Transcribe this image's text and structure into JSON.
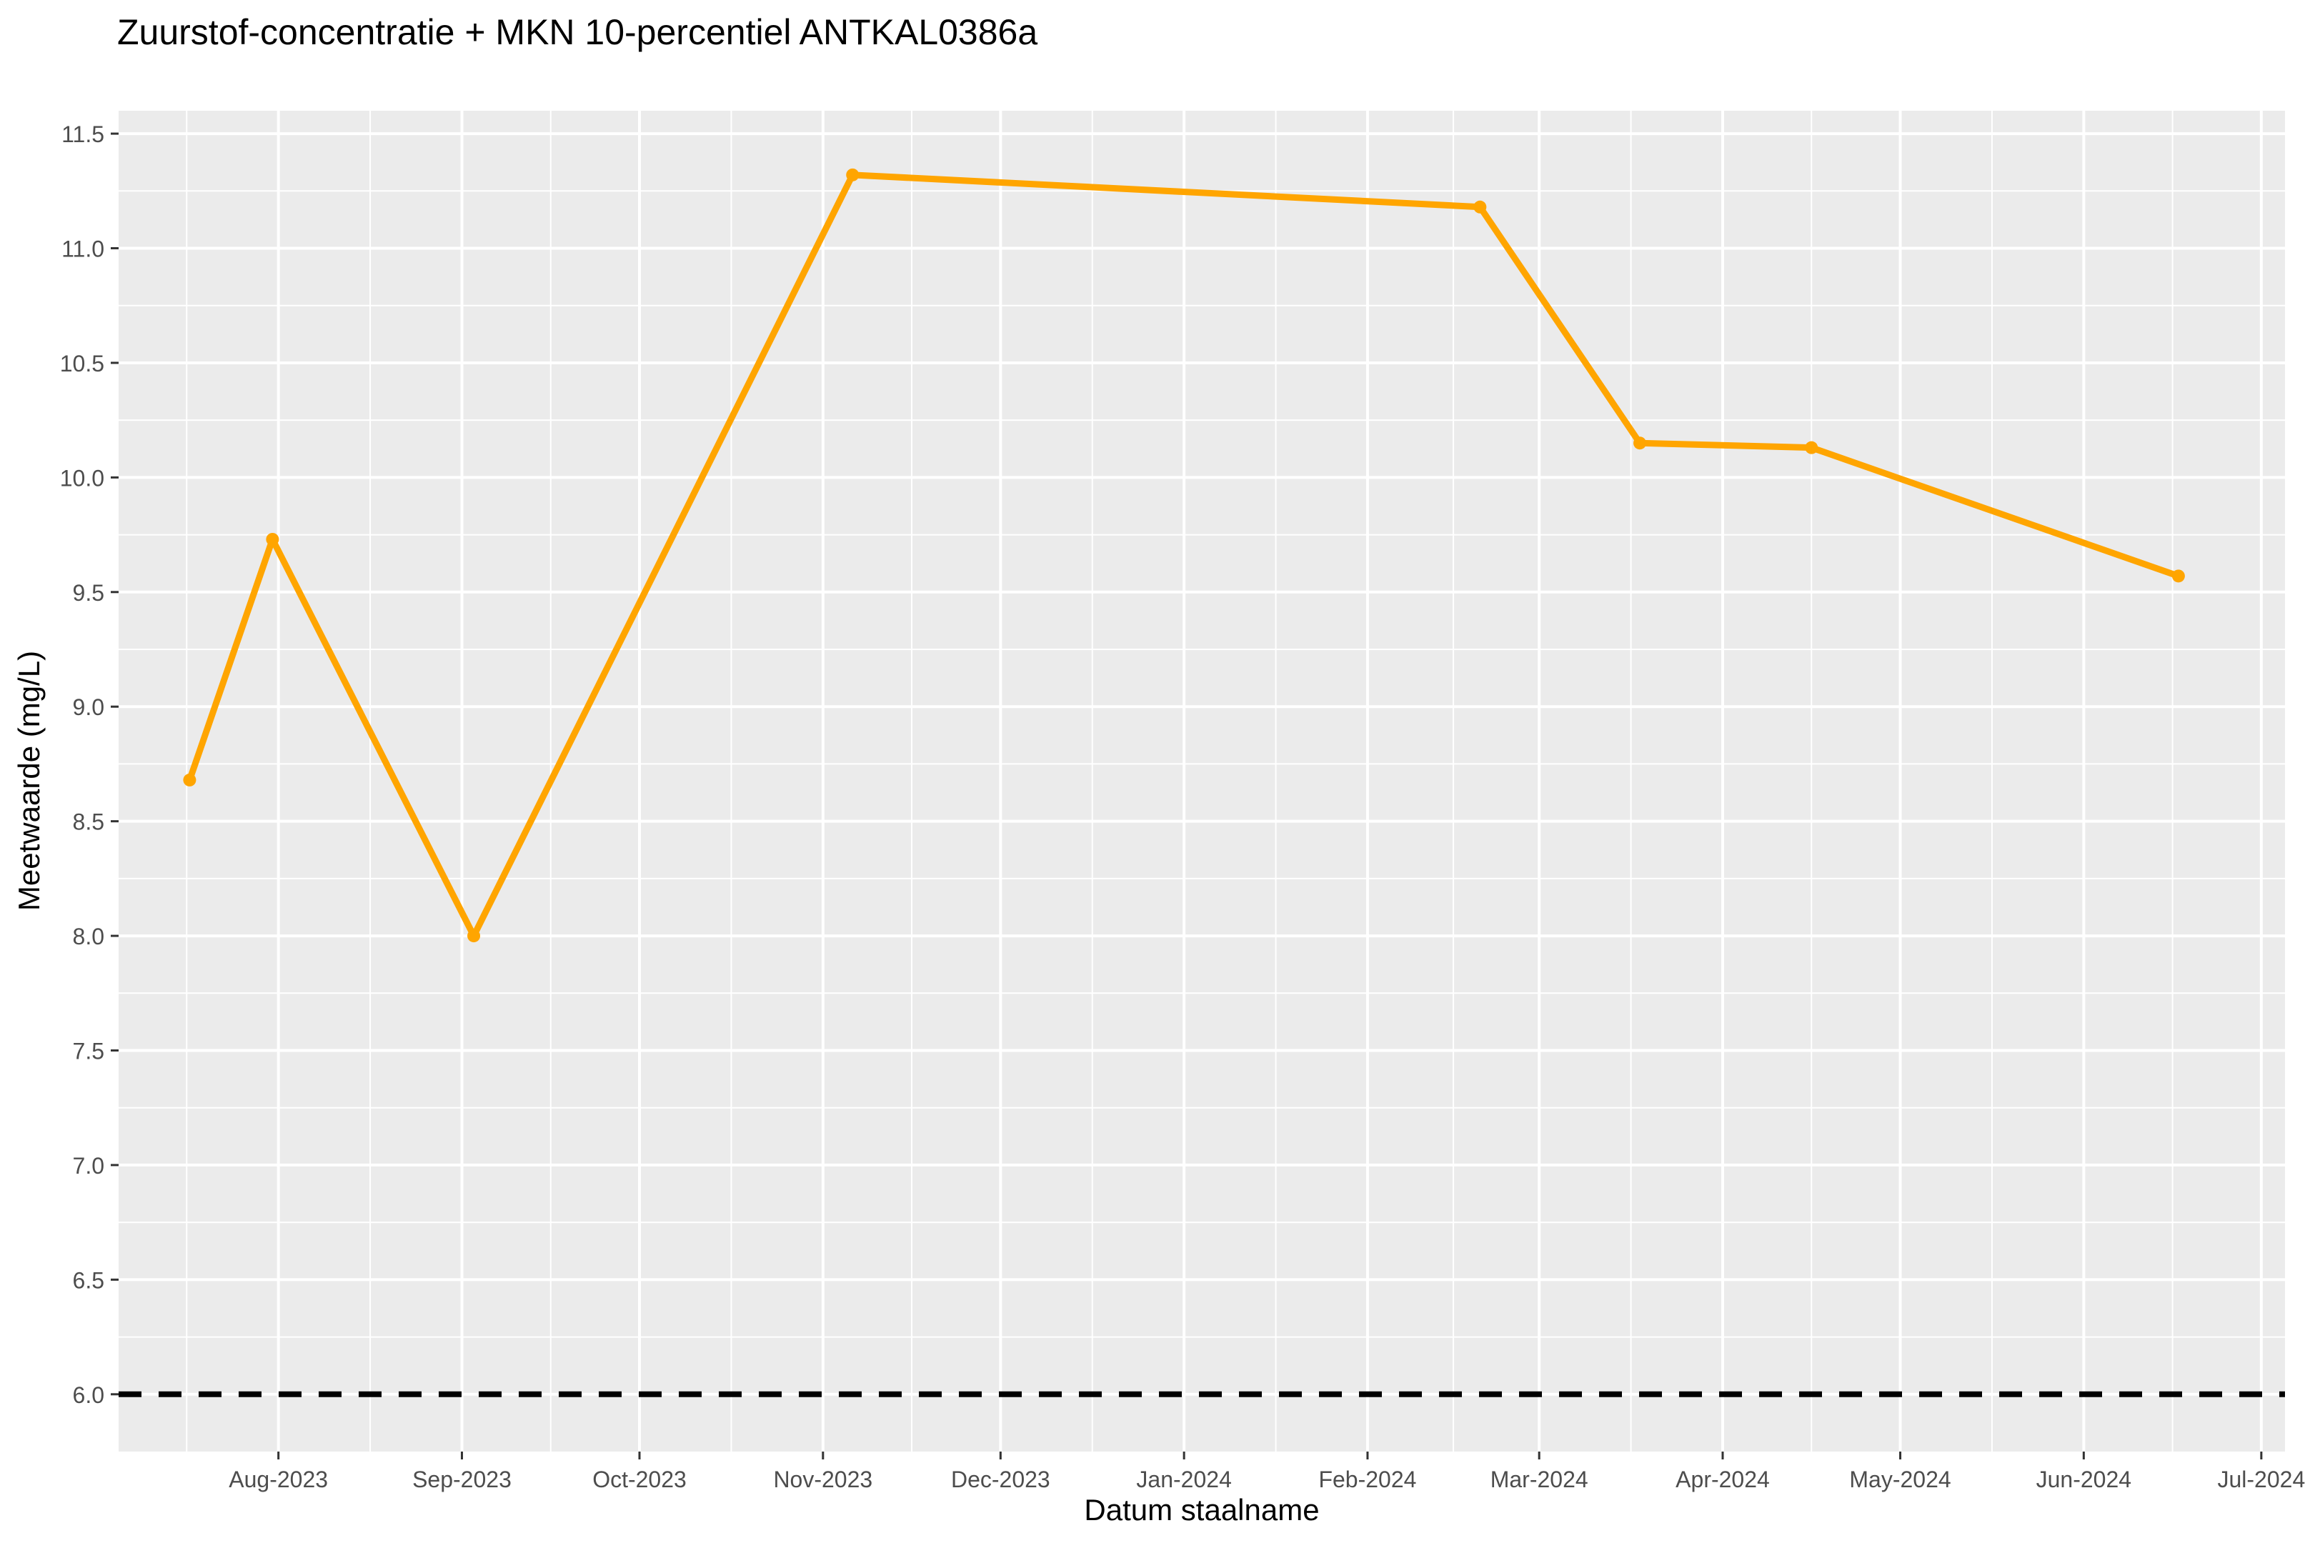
{
  "chart_data": {
    "type": "line",
    "title": "Zuurstof-concentratie + MKN 10-percentiel ANTKAL0386a",
    "xlabel": "Datum staalname",
    "ylabel": "Meetwaarde (mg/L)",
    "xlim": [
      "2023-07-05",
      "2024-07-05"
    ],
    "ylim": [
      5.75,
      11.6
    ],
    "x_ticks": [
      {
        "date": "2023-08-01",
        "label": "Aug-2023"
      },
      {
        "date": "2023-09-01",
        "label": "Sep-2023"
      },
      {
        "date": "2023-10-01",
        "label": "Oct-2023"
      },
      {
        "date": "2023-11-01",
        "label": "Nov-2023"
      },
      {
        "date": "2023-12-01",
        "label": "Dec-2023"
      },
      {
        "date": "2024-01-01",
        "label": "Jan-2024"
      },
      {
        "date": "2024-02-01",
        "label": "Feb-2024"
      },
      {
        "date": "2024-03-01",
        "label": "Mar-2024"
      },
      {
        "date": "2024-04-01",
        "label": "Apr-2024"
      },
      {
        "date": "2024-05-01",
        "label": "May-2024"
      },
      {
        "date": "2024-06-01",
        "label": "Jun-2024"
      },
      {
        "date": "2024-07-01",
        "label": "Jul-2024"
      }
    ],
    "y_ticks": [
      6.0,
      6.5,
      7.0,
      7.5,
      8.0,
      8.5,
      9.0,
      9.5,
      10.0,
      10.5,
      11.0,
      11.5
    ],
    "series": [
      {
        "color": "#FFA500",
        "x": [
          "2023-07-17",
          "2023-07-31",
          "2023-09-03",
          "2023-11-06",
          "2024-02-20",
          "2024-03-18",
          "2024-04-16",
          "2024-06-17"
        ],
        "y": [
          8.68,
          9.73,
          8.0,
          11.32,
          11.18,
          10.15,
          10.13,
          9.57
        ]
      }
    ],
    "reference_line": {
      "y": 6.0,
      "style": "dashed",
      "color": "#000000"
    },
    "grid": true,
    "legend": "none",
    "colors": {
      "panel": "#EBEBEB",
      "grid": "#FFFFFF",
      "line": "#FFA500"
    }
  }
}
